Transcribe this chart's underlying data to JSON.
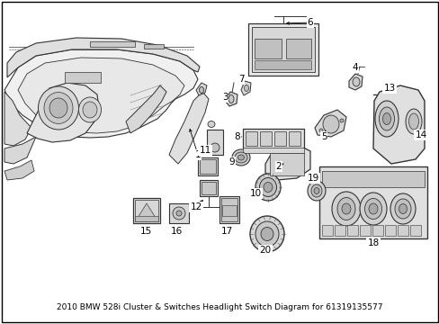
{
  "title": "2010 BMW 528i Cluster & Switches Headlight Switch Diagram for 61319135577",
  "title_fontsize": 6.5,
  "background_color": "#ffffff",
  "text_color": "#000000",
  "line_color": "#333333",
  "lw": 0.7
}
